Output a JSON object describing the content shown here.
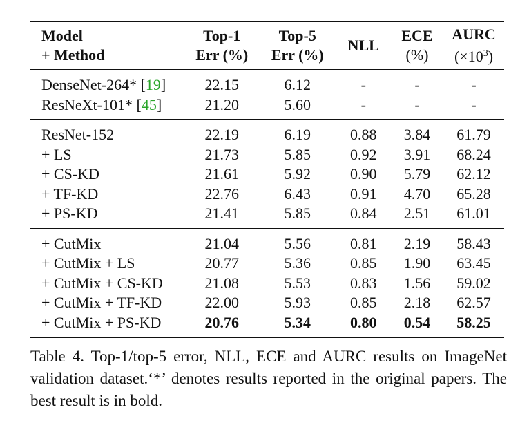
{
  "table": {
    "header": {
      "model_line1": "Model",
      "model_line2": "+ Method",
      "top1_line1": "Top-1",
      "top1_line2": "Err (%)",
      "top5_line1": "Top-5",
      "top5_line2": "Err (%)",
      "nll": "NLL",
      "ece_line1": "ECE",
      "ece_line2": "(%)",
      "aurc_line1": "AURC",
      "aurc_line2_prefix": "(×10",
      "aurc_line2_sup": "3",
      "aurc_line2_suffix": ")"
    },
    "reported": [
      {
        "model": "DenseNet-264* [",
        "cite": "19",
        "close": "]",
        "top1": "22.15",
        "top5": "6.12",
        "nll": "-",
        "ece": "-",
        "aurc": "-"
      },
      {
        "model": "ResNeXt-101* [",
        "cite": "45",
        "close": "]",
        "top1": "21.20",
        "top5": "5.60",
        "nll": "-",
        "ece": "-",
        "aurc": "-"
      }
    ],
    "resnet": [
      {
        "model": "ResNet-152",
        "top1": "22.19",
        "top5": "6.19",
        "nll": "0.88",
        "ece": "3.84",
        "aurc": "61.79"
      },
      {
        "model": "+ LS",
        "top1": "21.73",
        "top5": "5.85",
        "nll": "0.92",
        "ece": "3.91",
        "aurc": "68.24"
      },
      {
        "model": "+ CS-KD",
        "top1": "21.61",
        "top5": "5.92",
        "nll": "0.90",
        "ece": "5.79",
        "aurc": "62.12"
      },
      {
        "model": "+ TF-KD",
        "top1": "22.76",
        "top5": "6.43",
        "nll": "0.91",
        "ece": "4.70",
        "aurc": "65.28"
      },
      {
        "model": "+ PS-KD",
        "top1": "21.41",
        "top5": "5.85",
        "nll": "0.84",
        "ece": "2.51",
        "aurc": "61.01"
      }
    ],
    "cutmix": [
      {
        "model": "+ CutMix",
        "top1": "21.04",
        "top5": "5.56",
        "nll": "0.81",
        "ece": "2.19",
        "aurc": "58.43"
      },
      {
        "model": "+ CutMix + LS",
        "top1": "20.77",
        "top5": "5.36",
        "nll": "0.85",
        "ece": "1.90",
        "aurc": "63.45"
      },
      {
        "model": "+ CutMix + CS-KD",
        "top1": "21.08",
        "top5": "5.53",
        "nll": "0.83",
        "ece": "1.56",
        "aurc": "59.02"
      },
      {
        "model": "+ CutMix + TF-KD",
        "top1": "22.00",
        "top5": "5.93",
        "nll": "0.85",
        "ece": "2.18",
        "aurc": "62.57"
      },
      {
        "model": "+ CutMix + PS-KD",
        "top1": "20.76",
        "top5": "5.34",
        "nll": "0.80",
        "ece": "0.54",
        "aurc": "58.25"
      }
    ]
  },
  "caption": "Table 4. Top-1/top-5 error, NLL, ECE and AURC results on ImageNet validation dataset.‘*’ denotes results reported in the original papers. The best result is in bold."
}
